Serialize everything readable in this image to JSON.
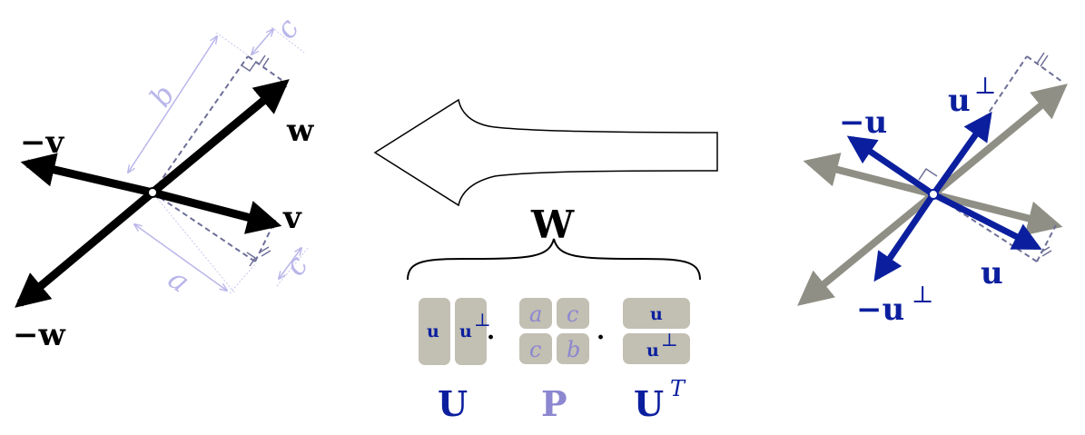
{
  "left_panel": {
    "labels": {
      "w": "w",
      "neg_w": "−w",
      "v": "v",
      "neg_v": "−v",
      "len_a": "a",
      "len_b": "b",
      "len_c_top": "c",
      "len_c_bottom": "c"
    }
  },
  "right_panel": {
    "labels": {
      "u": "u",
      "neg_u": "−u",
      "u_perp": "u",
      "neg_u_perp": "−u",
      "perp_symbol": "⊥"
    }
  },
  "center": {
    "brace_label": "W",
    "dot_operator": "·",
    "matrix_U": {
      "name": "U",
      "col1": "u",
      "col2": "u",
      "col2_sup": "⊥"
    },
    "matrix_P": {
      "name": "P",
      "a": "a",
      "c1": "c",
      "c2": "c",
      "b": "b"
    },
    "matrix_UT": {
      "name": "U",
      "name_sup": "T",
      "row1": "u",
      "row2": "u",
      "row2_sup": "⊥"
    }
  },
  "colors": {
    "black": "#000000",
    "blue": "#0b1f9e",
    "lavender": "#8c87d0",
    "gray_arrow": "#8f8f85",
    "block_fill": "#c2bfb3",
    "light_line": "#b9b6ea",
    "dashed_line": "#6e6f98"
  }
}
